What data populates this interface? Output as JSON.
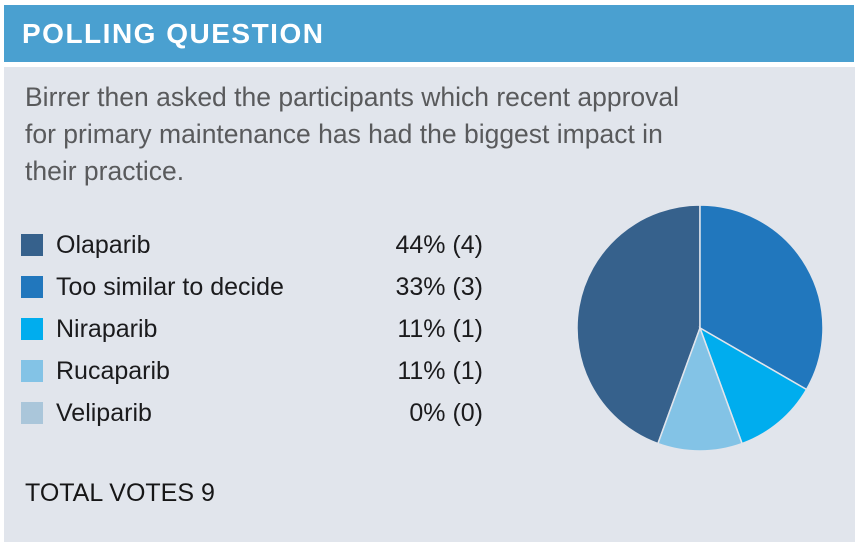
{
  "header": {
    "title": "POLLING QUESTION"
  },
  "question": {
    "text": "Birrer then asked the participants which recent approval\nfor primary maintenance has had the biggest impact in\ntheir practice."
  },
  "totals": {
    "label": "TOTAL VOTES",
    "value": "9"
  },
  "colors": {
    "header_bg": "#4AA0D0",
    "body_bg": "#E1E5EC",
    "header_text": "#FFFFFF",
    "question_text": "#595A5C",
    "legend_text": "#1B1B1D",
    "slice_border": "#E1E5EC"
  },
  "chart_data": {
    "type": "pie",
    "title": "POLLING QUESTION",
    "total_votes": 9,
    "start_angle": "12-o'clock",
    "direction": "clockwise",
    "legend_position": "left",
    "items": [
      {
        "label": "Olaparib",
        "percent": 44,
        "count": 4,
        "value_text": "44% (4)",
        "color": "#36618C",
        "pie": {
          "start_deg": 200,
          "end_deg": 360
        }
      },
      {
        "label": "Too similar to decide",
        "percent": 33,
        "count": 3,
        "value_text": "33% (3)",
        "color": "#2177BD",
        "pie": {
          "start_deg": 0,
          "end_deg": 120
        }
      },
      {
        "label": "Niraparib",
        "percent": 11,
        "count": 1,
        "value_text": "11% (1)",
        "color": "#00ADEE",
        "pie": {
          "start_deg": 120,
          "end_deg": 160
        }
      },
      {
        "label": "Rucaparib",
        "percent": 11,
        "count": 1,
        "value_text": "11% (1)",
        "color": "#83C3E6",
        "pie": {
          "start_deg": 160,
          "end_deg": 200
        }
      },
      {
        "label": "Veliparib",
        "percent": 0,
        "count": 0,
        "value_text": "0% (0)",
        "color": "#AAC6DA",
        "pie": {
          "start_deg": 360,
          "end_deg": 360
        }
      }
    ]
  }
}
